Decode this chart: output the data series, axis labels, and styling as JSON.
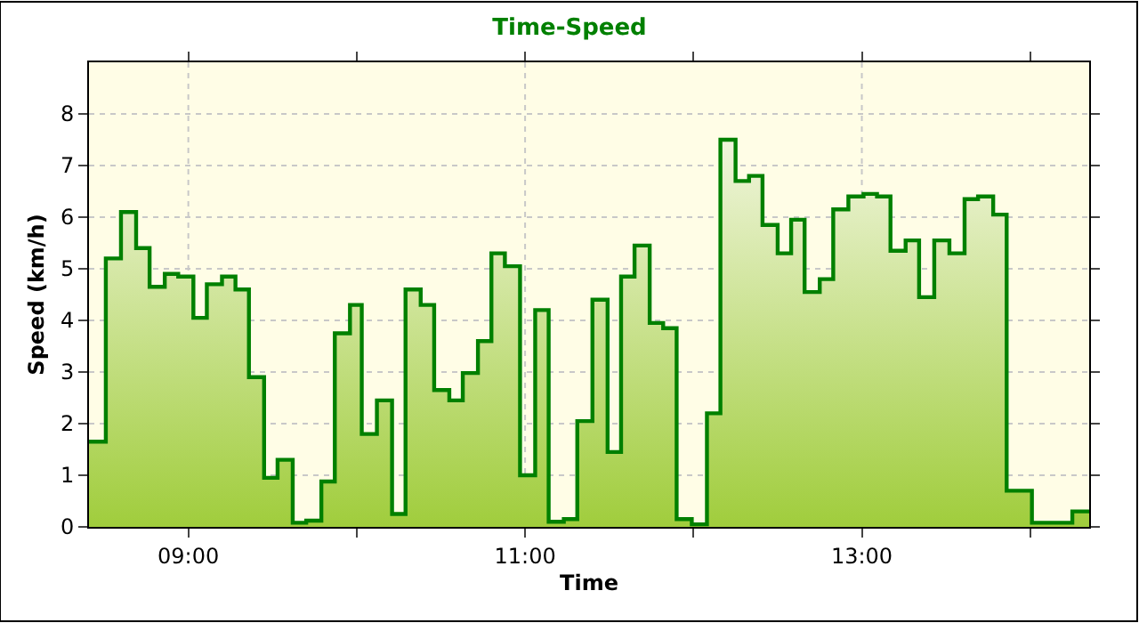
{
  "chart_data": {
    "type": "area",
    "title": "Time-Speed",
    "xlabel": "Time",
    "ylabel": "Speed (km/h)",
    "x": [
      8.41,
      8.51,
      8.51,
      8.6,
      8.6,
      8.69,
      8.69,
      8.77,
      8.77,
      8.86,
      8.86,
      8.94,
      8.94,
      9.03,
      9.03,
      9.11,
      9.11,
      9.2,
      9.2,
      9.28,
      9.28,
      9.36,
      9.36,
      9.45,
      9.45,
      9.53,
      9.53,
      9.62,
      9.62,
      9.7,
      9.7,
      9.79,
      9.79,
      9.87,
      9.87,
      9.96,
      9.96,
      10.03,
      10.03,
      10.12,
      10.12,
      10.21,
      10.21,
      10.29,
      10.29,
      10.38,
      10.38,
      10.46,
      10.46,
      10.55,
      10.55,
      10.63,
      10.63,
      10.72,
      10.72,
      10.8,
      10.8,
      10.88,
      10.88,
      10.97,
      10.97,
      11.06,
      11.06,
      11.14,
      11.14,
      11.23,
      11.23,
      11.31,
      11.31,
      11.4,
      11.4,
      11.49,
      11.49,
      11.57,
      11.57,
      11.65,
      11.65,
      11.74,
      11.74,
      11.82,
      11.82,
      11.9,
      11.9,
      11.99,
      11.99,
      12.08,
      12.08,
      12.16,
      12.16,
      12.25,
      12.25,
      12.33,
      12.33,
      12.41,
      12.41,
      12.5,
      12.5,
      12.58,
      12.58,
      12.66,
      12.66,
      12.75,
      12.75,
      12.83,
      12.83,
      12.92,
      12.92,
      13.01,
      13.01,
      13.09,
      13.09,
      13.17,
      13.17,
      13.26,
      13.26,
      13.34,
      13.34,
      13.43,
      13.43,
      13.52,
      13.52,
      13.61,
      13.61,
      13.69,
      13.69,
      13.78,
      13.78,
      13.86,
      13.86,
      14.01,
      14.01,
      14.25,
      14.25,
      14.35
    ],
    "series": [
      {
        "color": "#008000",
        "values": [
          1.65,
          1.65,
          5.2,
          5.2,
          6.1,
          6.1,
          5.4,
          5.4,
          4.65,
          4.65,
          4.9,
          4.9,
          4.85,
          4.85,
          4.05,
          4.05,
          4.7,
          4.7,
          4.85,
          4.85,
          4.6,
          4.6,
          2.9,
          2.9,
          0.95,
          0.95,
          1.3,
          1.3,
          0.08,
          0.08,
          0.12,
          0.12,
          0.88,
          0.88,
          3.75,
          3.75,
          4.3,
          4.3,
          1.8,
          1.8,
          2.45,
          2.45,
          0.25,
          0.25,
          4.6,
          4.6,
          4.3,
          4.3,
          2.65,
          2.65,
          2.45,
          2.45,
          2.98,
          2.98,
          3.6,
          3.6,
          5.3,
          5.3,
          5.05,
          5.05,
          1.0,
          1.0,
          4.2,
          4.2,
          0.1,
          0.1,
          0.15,
          0.15,
          2.05,
          2.05,
          4.4,
          4.4,
          1.45,
          1.45,
          4.85,
          4.85,
          5.45,
          5.45,
          3.95,
          3.95,
          3.85,
          3.85,
          0.15,
          0.15,
          0.05,
          0.05,
          2.2,
          2.2,
          7.5,
          7.5,
          6.7,
          6.7,
          6.8,
          6.8,
          5.85,
          5.85,
          5.3,
          5.3,
          5.95,
          5.95,
          4.55,
          4.55,
          4.8,
          4.8,
          6.15,
          6.15,
          6.4,
          6.4,
          6.45,
          6.45,
          6.4,
          6.4,
          5.35,
          5.35,
          5.55,
          5.55,
          4.45,
          4.45,
          5.55,
          5.55,
          5.3,
          5.3,
          6.35,
          6.35,
          6.4,
          6.4,
          6.05,
          6.05,
          0.7,
          0.7,
          0.08,
          0.08,
          0.3,
          0.3
        ]
      }
    ],
    "xlim": [
      8.41,
      14.35
    ],
    "xticks": [
      {
        "value": 9,
        "label": "09:00"
      },
      {
        "value": 10,
        "label": null
      },
      {
        "value": 11,
        "label": "11:00"
      },
      {
        "value": 12,
        "label": null
      },
      {
        "value": 13,
        "label": "13:00"
      },
      {
        "value": 14,
        "label": null
      }
    ],
    "ylim": [
      0,
      9
    ],
    "yticks": [
      0,
      1,
      2,
      3,
      4,
      5,
      6,
      7,
      8
    ],
    "grid": true
  }
}
